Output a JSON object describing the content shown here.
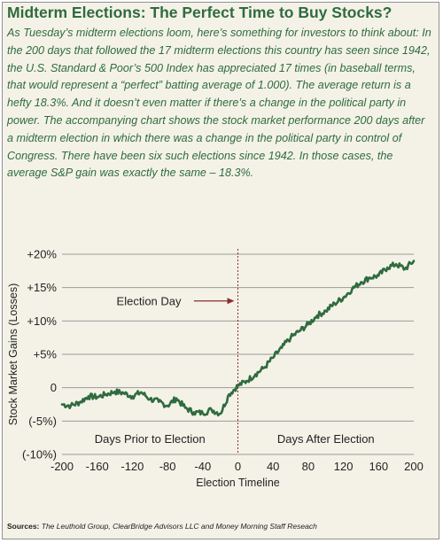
{
  "header": {
    "title": "Midterm Elections: The Perfect Time to Buy Stocks?",
    "intro": "As Tuesday’s midterm elections loom, here’s something for investors to think about: In the 200 days that followed the 17 midterm elections this country has seen since 1942, the U.S. Standard & Poor’s 500 Index has appreciated 17 times (in baseball terms, that would represent a “perfect” batting average of 1.000). The average return is a hefty 18.3%. And it doesn’t even matter if there’s a change in the political party in power. The accompanying chart shows the stock market performance 200 days after a midterm election in which there was a change in the political party in control of Congress. There have been six such elections since 1942. In those cases, the average S&P gain was exactly the same – 18.3%."
  },
  "sources": {
    "label": "Sources:",
    "text": "The Leuthold Group, ClearBridge Advisors LLC and Money Morning Staff Reseach"
  },
  "chart_data": {
    "type": "line",
    "xlabel": "Election Timeline",
    "ylabel": "Stock Market Gains (Losses)",
    "xlim": [
      -200,
      200
    ],
    "ylim": [
      -10,
      20
    ],
    "x_ticks": [
      "-200",
      "-160",
      "-120",
      "-80",
      "-40",
      "0",
      "40",
      "80",
      "120",
      "160",
      "200"
    ],
    "y_ticks": [
      {
        "value": 20,
        "label": "+20%"
      },
      {
        "value": 15,
        "label": "+15%"
      },
      {
        "value": 10,
        "label": "+10%"
      },
      {
        "value": 5,
        "label": "+5%"
      },
      {
        "value": 0,
        "label": "0"
      },
      {
        "value": -5,
        "label": "(-5%)"
      },
      {
        "value": -10,
        "label": "(-10%)"
      }
    ],
    "annotations": {
      "election_day": "Election Day",
      "prior": "Days Prior to Election",
      "after": "Days After Election"
    },
    "line_color": "#2f6b3f",
    "election_line_color": "#8b2c2c",
    "series": [
      {
        "x": [
          -200,
          -190,
          -180,
          -170,
          -160,
          -150,
          -140,
          -130,
          -120,
          -110,
          -100,
          -90,
          -80,
          -70,
          -60,
          -50,
          -40,
          -30,
          -20,
          -10,
          0,
          10,
          20,
          30,
          40,
          50,
          60,
          70,
          80,
          90,
          100,
          110,
          120,
          130,
          140,
          150,
          160,
          170,
          180,
          190,
          200
        ],
        "y": [
          -2.5,
          -2.7,
          -2.2,
          -1.3,
          -1.4,
          -1.0,
          -0.6,
          -0.8,
          -1.3,
          -0.7,
          -1.7,
          -2.1,
          -2.7,
          -1.6,
          -3.0,
          -3.7,
          -3.8,
          -3.3,
          -3.9,
          -1.0,
          0.3,
          1.0,
          2.0,
          3.0,
          4.5,
          6.0,
          7.5,
          8.5,
          9.5,
          10.8,
          11.5,
          12.6,
          13.5,
          14.8,
          15.8,
          16.5,
          16.8,
          18.0,
          18.5,
          17.8,
          19.0
        ]
      }
    ]
  }
}
